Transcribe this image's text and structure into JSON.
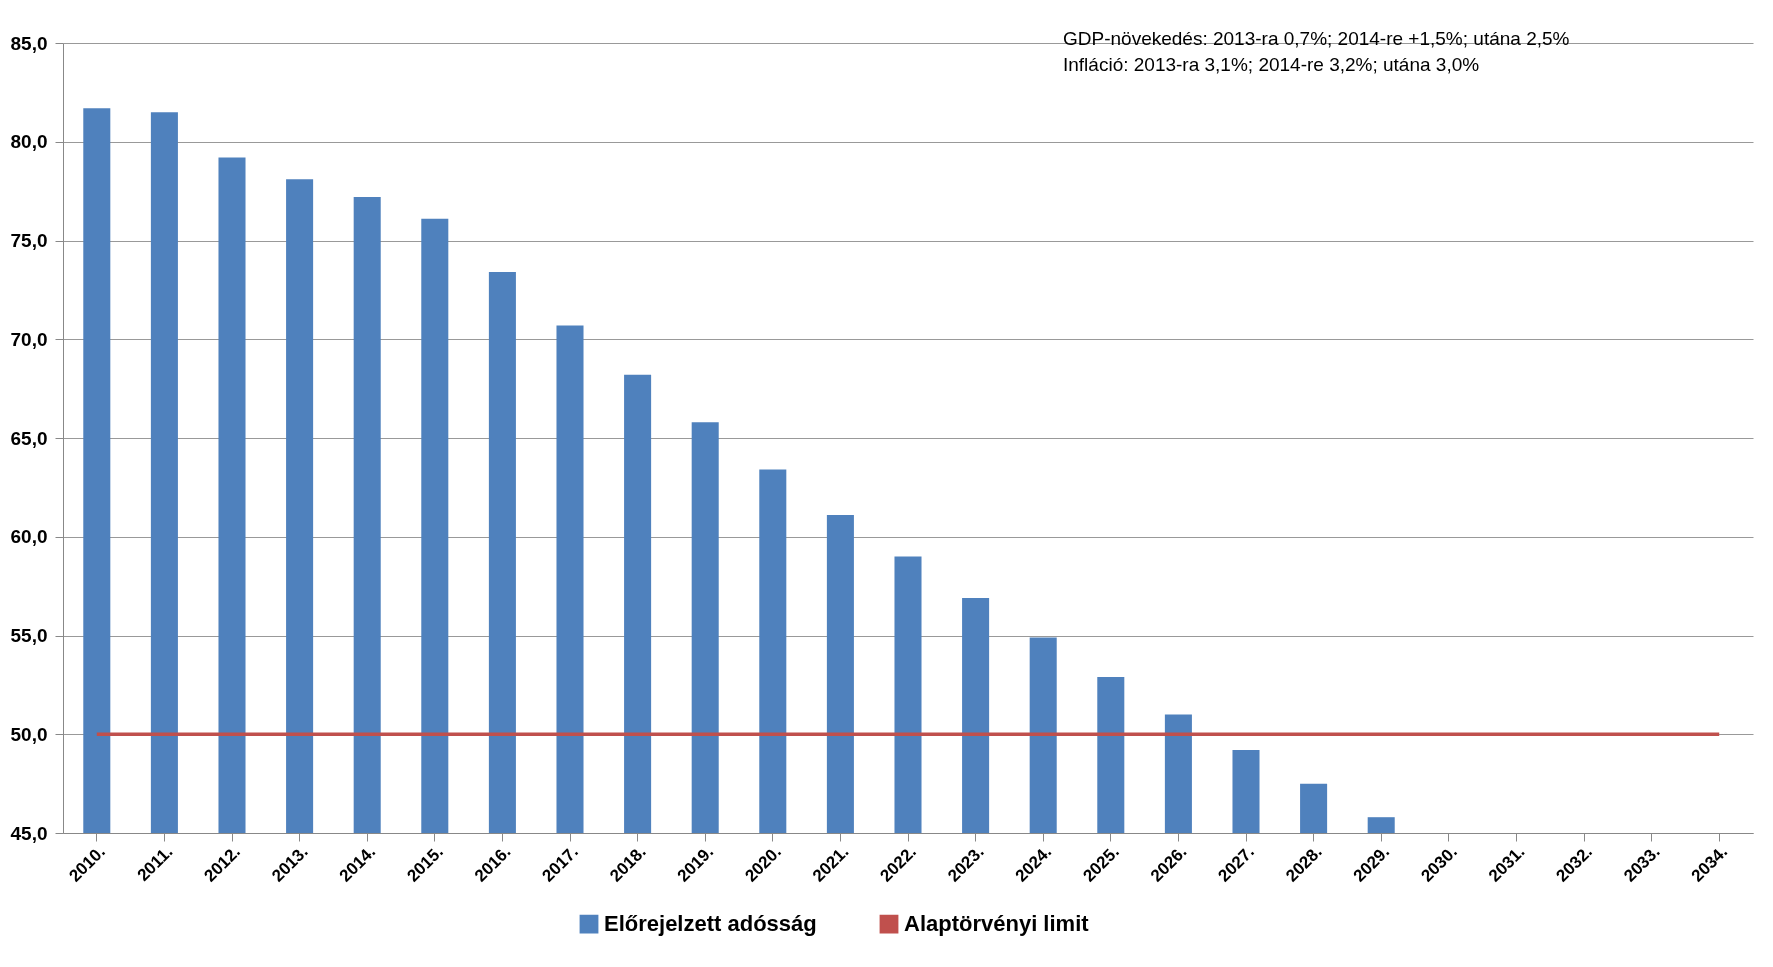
{
  "chart_data": {
    "type": "bar",
    "categories": [
      "2010.",
      "2011.",
      "2012.",
      "2013.",
      "2014.",
      "2015.",
      "2016.",
      "2017.",
      "2018.",
      "2019.",
      "2020.",
      "2021.",
      "2022.",
      "2023.",
      "2024.",
      "2025.",
      "2026.",
      "2027.",
      "2028.",
      "2029.",
      "2030.",
      "2031.",
      "2032.",
      "2033.",
      "2034."
    ],
    "series": [
      {
        "name": "Előrejelzett adósság",
        "color": "#4f81bd",
        "values": [
          81.7,
          81.5,
          79.2,
          78.1,
          77.2,
          76.1,
          73.4,
          70.7,
          68.2,
          65.8,
          63.4,
          61.1,
          59.0,
          56.9,
          54.9,
          52.9,
          51.0,
          49.2,
          47.5,
          45.8,
          45.0,
          45.0,
          45.0,
          45.0,
          45.0
        ]
      },
      {
        "name": "Alaptörvényi limit",
        "type": "line",
        "color": "#c0504d",
        "values": [
          50,
          50,
          50,
          50,
          50,
          50,
          50,
          50,
          50,
          50,
          50,
          50,
          50,
          50,
          50,
          50,
          50,
          50,
          50,
          50,
          50,
          50,
          50,
          50,
          50
        ]
      }
    ],
    "ylim": [
      45,
      85
    ],
    "yticks": [
      {
        "value": 45,
        "label": "45,0"
      },
      {
        "value": 50,
        "label": "50,0"
      },
      {
        "value": 55,
        "label": "55,0"
      },
      {
        "value": 60,
        "label": "60,0"
      },
      {
        "value": 65,
        "label": "65,0"
      },
      {
        "value": 70,
        "label": "70,0"
      },
      {
        "value": 75,
        "label": "75,0"
      },
      {
        "value": 80,
        "label": "80,0"
      },
      {
        "value": 85,
        "label": "85,0"
      }
    ],
    "grid": "y",
    "legend": "bottom",
    "annotations": [
      "GDP-növekedés:  2013-ra 0,7%; 2014-re +1,5%; utána 2,5%",
      "Infláció:              2013-ra 3,1%; 2014-re 3,2%; utána 3,0%"
    ]
  }
}
